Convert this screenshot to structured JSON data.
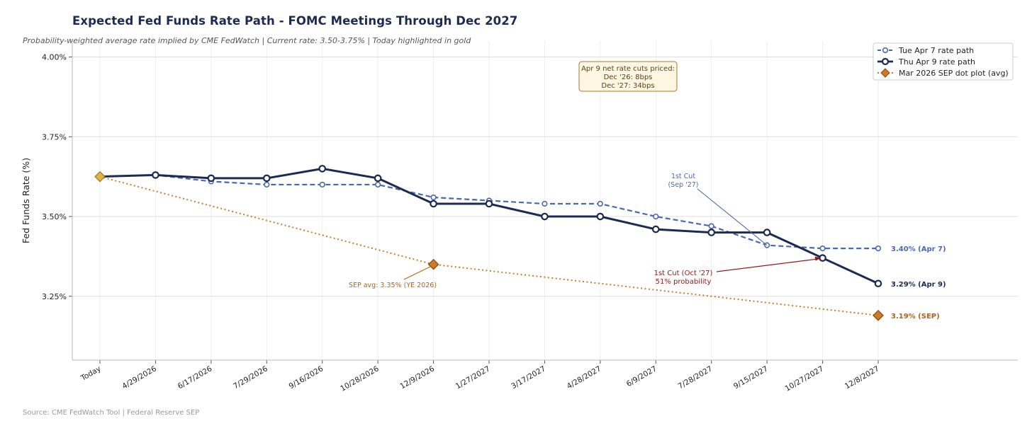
{
  "header": {
    "title": "Expected Fed Funds Rate Path - FOMC Meetings Through Dec 2027",
    "subtitle": "Probability-weighted average rate implied by CME FedWatch  |  Current rate: 3.50-3.75%  |  Today highlighted in gold"
  },
  "footer": {
    "source": "Source: CME FedWatch Tool  |  Federal Reserve SEP"
  },
  "chart_data": {
    "type": "line",
    "ylabel": "Fed Funds Rate (%)",
    "xlabel": "",
    "ylim": [
      3.05,
      4.05
    ],
    "yticks": [
      {
        "value": 3.25,
        "label": "3.25%"
      },
      {
        "value": 3.5,
        "label": "3.50%"
      },
      {
        "value": 3.75,
        "label": "3.75%"
      },
      {
        "value": 4.0,
        "label": "4.00%"
      }
    ],
    "grid": true,
    "legend_position": "top-right",
    "categories": [
      "Today",
      "4/29/2026",
      "6/17/2026",
      "7/29/2026",
      "9/16/2026",
      "10/28/2026",
      "12/9/2026",
      "1/27/2027",
      "3/17/2027",
      "4/28/2027",
      "6/9/2027",
      "7/28/2027",
      "9/15/2027",
      "10/27/2027",
      "12/8/2027"
    ],
    "series": [
      {
        "name": "Tue Apr 7 rate path",
        "style": "dashed-circle",
        "color": "#4a68b0",
        "values": [
          3.625,
          3.63,
          3.61,
          3.6,
          3.6,
          3.6,
          3.56,
          3.55,
          3.54,
          3.54,
          3.5,
          3.47,
          3.41,
          3.4,
          3.4
        ],
        "end_label": "3.40% (Apr 7)"
      },
      {
        "name": "Thu Apr 9 rate path",
        "style": "solid-circle",
        "color": "#1c2b52",
        "values": [
          3.625,
          3.63,
          3.62,
          3.62,
          3.65,
          3.62,
          3.54,
          3.54,
          3.5,
          3.5,
          3.46,
          3.45,
          3.45,
          3.37,
          3.29
        ],
        "end_label": "3.29% (Apr 9)"
      },
      {
        "name": "Mar 2026 SEP dot plot (avg)",
        "style": "dotted-diamond",
        "color": "#cc7a29",
        "points": [
          {
            "x": "Today",
            "y": 3.625
          },
          {
            "x": "12/9/2026",
            "y": 3.35
          },
          {
            "x": "12/8/2027",
            "y": 3.19
          }
        ],
        "end_label": "3.19% (SEP)"
      }
    ],
    "today_marker": {
      "x": "Today",
      "y": 3.625,
      "color": "#e0b24a"
    },
    "annotations": {
      "box": [
        "Apr 9 net rate cuts priced:",
        "Dec '26: 8bps",
        "Dec '27: 34bps"
      ],
      "first_cut_apr7": {
        "lines": [
          "1st Cut",
          "(Sep '27)"
        ],
        "target_x": "9/15/2027",
        "target_y": 3.41,
        "color": "#4a68b0"
      },
      "first_cut_apr9": {
        "lines": [
          "1st Cut (Oct '27)",
          "51% probability"
        ],
        "target_x": "10/27/2027",
        "target_y": 3.37,
        "color": "#8b1a1a"
      },
      "sep_label": {
        "text": "SEP avg: 3.35% (YE 2026)",
        "target_x": "12/9/2026",
        "target_y": 3.35,
        "color": "#b0641a"
      }
    }
  }
}
